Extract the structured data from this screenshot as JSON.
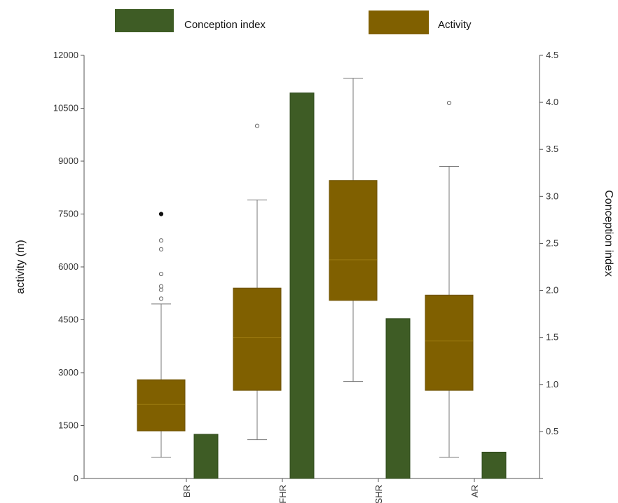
{
  "chart_data": {
    "type": "bar",
    "categories": [
      "BR",
      "FHR",
      "SHR",
      "AR"
    ],
    "ylabel": "activity (m)",
    "y2label": "Conception index",
    "ylim": [
      0,
      12000
    ],
    "y2lim": [
      0,
      4.5
    ],
    "yticks": [
      "0",
      "1500",
      "3000",
      "4500",
      "6000",
      "7500",
      "9000",
      "10500",
      "12000"
    ],
    "y2ticks": [
      "0.5",
      "1.0",
      "1.5",
      "2.0",
      "2.5",
      "3.0",
      "3.5",
      "4.0",
      "4.5"
    ],
    "legend": {
      "position": "top",
      "items": [
        "Conception index",
        "Activity"
      ]
    },
    "colors": {
      "conception": "#3e5c25",
      "activity": "#806000"
    },
    "grid": false,
    "series": [
      {
        "name": "Activity",
        "kind": "boxplot",
        "axis": "left",
        "boxes": [
          {
            "min": 600,
            "q1": 1350,
            "median": 2100,
            "q3": 2800,
            "max": 4950,
            "outliers": [
              5100,
              5350,
              5450,
              5800,
              6500,
              6750
            ],
            "extremes": [
              7500
            ]
          },
          {
            "min": 1100,
            "q1": 2500,
            "median": 4000,
            "q3": 5400,
            "max": 7900,
            "outliers": [
              10000
            ],
            "extremes": []
          },
          {
            "min": 2750,
            "q1": 5050,
            "median": 6200,
            "q3": 8450,
            "max": 11350,
            "outliers": [],
            "extremes": []
          },
          {
            "min": 600,
            "q1": 2500,
            "median": 3900,
            "q3": 5200,
            "max": 8850,
            "outliers": [
              10650
            ],
            "extremes": []
          }
        ]
      },
      {
        "name": "Conception index",
        "kind": "bar",
        "axis": "right",
        "values": [
          0.47,
          4.1,
          1.7,
          0.28
        ]
      }
    ]
  }
}
